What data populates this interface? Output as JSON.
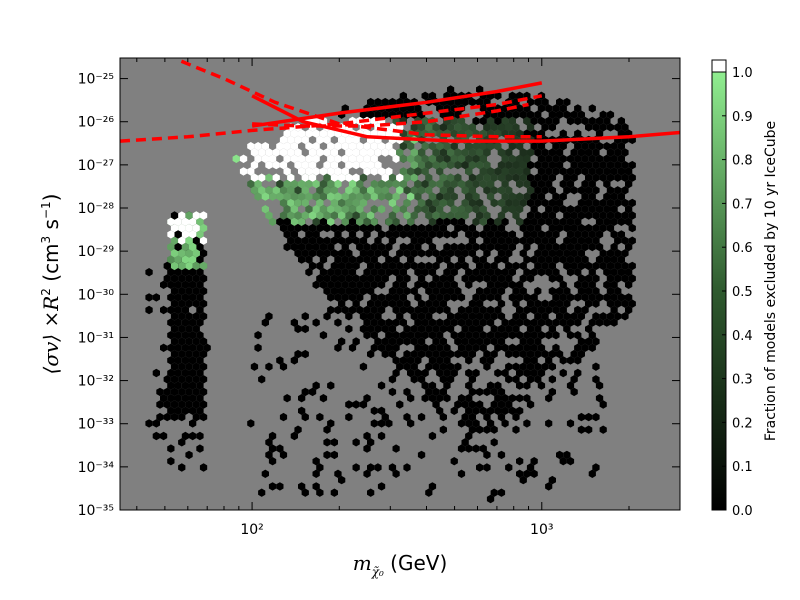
{
  "chart_data": {
    "type": "heatmap",
    "subtype": "hexbin",
    "xlabel": "m_{\\tilde{\\chi}_0} (GeV)",
    "ylabel": "⟨σv⟩ ×R² (cm³ s⁻¹)",
    "xscale": "log",
    "yscale": "log",
    "xlim": [
      35,
      3000
    ],
    "ylim": [
      1e-35,
      3e-25
    ],
    "background_color": "#808080",
    "x_ticks": [
      {
        "value": 100,
        "label": "10²"
      },
      {
        "value": 1000,
        "label": "10³"
      }
    ],
    "y_ticks": [
      {
        "value": -35,
        "label": "10⁻³⁵"
      },
      {
        "value": -34,
        "label": "10⁻³⁴"
      },
      {
        "value": -33,
        "label": "10⁻³³"
      },
      {
        "value": -32,
        "label": "10⁻³²"
      },
      {
        "value": -31,
        "label": "10⁻³¹"
      },
      {
        "value": -30,
        "label": "10⁻³⁰"
      },
      {
        "value": -29,
        "label": "10⁻²⁹"
      },
      {
        "value": -28,
        "label": "10⁻²⁸"
      },
      {
        "value": -27,
        "label": "10⁻²⁷"
      },
      {
        "value": -26,
        "label": "10⁻²⁶"
      },
      {
        "value": -25,
        "label": "10⁻²⁵"
      }
    ],
    "colorbar": {
      "label": "Fraction of models excluded by 10 yr IceCube",
      "range": [
        0.0,
        1.0
      ],
      "ticks": [
        "0.0",
        "0.1",
        "0.2",
        "0.3",
        "0.4",
        "0.5",
        "0.6",
        "0.7",
        "0.8",
        "0.9",
        "1.0"
      ],
      "low_color": "#000000",
      "high_color": "#90ee90",
      "over_color": "#ffffff"
    },
    "regions": [
      {
        "name": "low-mass-strip",
        "xmin": 45,
        "xmax": 68,
        "ymin_log": -34.2,
        "ymax_log": -28.0,
        "fraction": 0.0
      },
      {
        "name": "low-mass-strip-upper",
        "xmin": 52,
        "xmax": 66,
        "ymin_log": -29.5,
        "ymax_log": -28.2,
        "fraction": 0.6
      },
      {
        "name": "main-cloud",
        "xmin": 80,
        "xmax": 2000,
        "ymin_log": -34.7,
        "ymax_log": -25.2,
        "fraction": 0.0
      },
      {
        "name": "green-band",
        "xmin": 95,
        "xmax": 900,
        "ymin_log": -28.2,
        "ymax_log": -26.0,
        "fraction": 0.55
      },
      {
        "name": "white-region",
        "xmin": 90,
        "xmax": 330,
        "ymin_log": -27.3,
        "ymax_log": -25.9,
        "fraction": 1.0
      }
    ],
    "curves": [
      {
        "style": "solid",
        "color": "#ff0000",
        "points": [
          [
            100,
            -26.1
          ],
          [
            200,
            -25.8
          ],
          [
            400,
            -25.55
          ],
          [
            700,
            -25.3
          ],
          [
            1000,
            -25.1
          ]
        ]
      },
      {
        "style": "solid",
        "color": "#ff0000",
        "points": [
          [
            100,
            -25.4
          ],
          [
            150,
            -26.0
          ],
          [
            250,
            -26.35
          ],
          [
            500,
            -26.45
          ],
          [
            1000,
            -26.45
          ],
          [
            2000,
            -26.35
          ],
          [
            3000,
            -26.25
          ]
        ]
      },
      {
        "style": "dashed",
        "color": "#ff0000",
        "points": [
          [
            57,
            -24.6
          ],
          [
            80,
            -25.0
          ],
          [
            120,
            -25.55
          ],
          [
            200,
            -26.05
          ],
          [
            400,
            -26.3
          ],
          [
            700,
            -26.35
          ],
          [
            1000,
            -26.35
          ]
        ]
      },
      {
        "style": "dashed",
        "color": "#ff0000",
        "points": [
          [
            35,
            -26.45
          ],
          [
            60,
            -26.35
          ],
          [
            100,
            -26.2
          ],
          [
            200,
            -26.05
          ],
          [
            400,
            -25.8
          ],
          [
            700,
            -25.6
          ],
          [
            1000,
            -25.4
          ]
        ]
      },
      {
        "style": "dashed",
        "color": "#ff0000",
        "points": [
          [
            100,
            -26.05
          ],
          [
            150,
            -26.1
          ],
          [
            250,
            -26.1
          ],
          [
            400,
            -26.0
          ],
          [
            700,
            -25.75
          ],
          [
            900,
            -25.6
          ]
        ]
      }
    ]
  }
}
